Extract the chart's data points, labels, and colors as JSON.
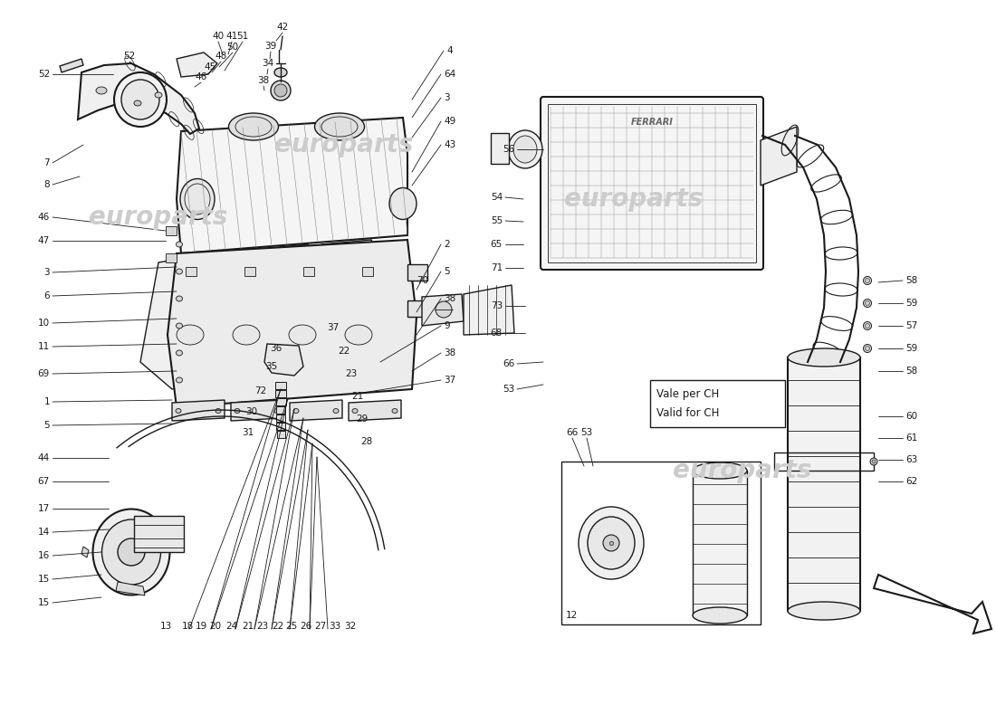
{
  "background_color": "#ffffff",
  "line_color": "#1a1a1a",
  "text_color": "#1a1a1a",
  "watermark_color": "#cccccc",
  "watermark_text": "europarts",
  "fig_width": 11.0,
  "fig_height": 8.0,
  "note_text_1": "Vale per CH",
  "note_text_2": "Valid for CH",
  "left_labels": [
    [
      52,
      718,
      "52"
    ],
    [
      7,
      620,
      "7"
    ],
    [
      8,
      596,
      "8"
    ],
    [
      46,
      560,
      "46"
    ],
    [
      47,
      534,
      "47"
    ],
    [
      3,
      499,
      "3"
    ],
    [
      6,
      473,
      "6"
    ],
    [
      10,
      443,
      "10"
    ],
    [
      11,
      417,
      "11"
    ],
    [
      69,
      387,
      "69"
    ],
    [
      1,
      356,
      "1"
    ],
    [
      5,
      330,
      "5"
    ],
    [
      44,
      294,
      "44"
    ],
    [
      67,
      268,
      "67"
    ],
    [
      17,
      238,
      "17"
    ],
    [
      14,
      212,
      "14"
    ],
    [
      16,
      186,
      "16"
    ],
    [
      15,
      160,
      "15"
    ],
    [
      15,
      134,
      "15"
    ]
  ],
  "right_labels_col1": [
    [
      56,
      632,
      "56"
    ],
    [
      54,
      580,
      "54"
    ],
    [
      55,
      554,
      "55"
    ],
    [
      65,
      528,
      "65"
    ],
    [
      71,
      502,
      "71"
    ],
    [
      73,
      461,
      "73"
    ],
    [
      68,
      431,
      "68"
    ],
    [
      66,
      395,
      "66"
    ]
  ],
  "right_labels_col2": [
    [
      58,
      490,
      "58"
    ],
    [
      59,
      466,
      "59"
    ],
    [
      57,
      442,
      "57"
    ],
    [
      59,
      418,
      "59"
    ],
    [
      58,
      390,
      "58"
    ],
    [
      60,
      336,
      "60"
    ],
    [
      61,
      312,
      "61"
    ],
    [
      63,
      288,
      "63"
    ],
    [
      62,
      264,
      "62"
    ]
  ],
  "top_labels_left": [
    [
      153,
      724,
      "52"
    ],
    [
      234,
      742,
      "40"
    ],
    [
      248,
      742,
      "41"
    ],
    [
      305,
      760,
      "42"
    ],
    [
      295,
      740,
      "39"
    ],
    [
      292,
      718,
      "34"
    ],
    [
      289,
      698,
      "38"
    ],
    [
      274,
      730,
      "51"
    ],
    [
      264,
      718,
      "50"
    ],
    [
      251,
      716,
      "48"
    ],
    [
      242,
      708,
      "45"
    ],
    [
      236,
      700,
      "46"
    ]
  ],
  "top_labels_right": [
    [
      483,
      732,
      "4"
    ],
    [
      480,
      706,
      "64"
    ],
    [
      480,
      682,
      "3"
    ],
    [
      481,
      658,
      "49"
    ],
    [
      481,
      634,
      "43"
    ]
  ],
  "bottom_labels_row": [
    [
      185,
      99,
      "13"
    ],
    [
      208,
      99,
      "18"
    ],
    [
      224,
      99,
      "19"
    ],
    [
      241,
      99,
      "20"
    ],
    [
      260,
      99,
      "24"
    ],
    [
      278,
      99,
      "21"
    ],
    [
      294,
      99,
      "23"
    ],
    [
      311,
      99,
      "22"
    ],
    [
      327,
      99,
      "25"
    ],
    [
      343,
      99,
      "26"
    ],
    [
      360,
      99,
      "27"
    ],
    [
      376,
      99,
      "33"
    ],
    [
      393,
      99,
      "32"
    ]
  ],
  "bottom_labels_mid": [
    [
      300,
      396,
      "36"
    ],
    [
      299,
      376,
      "35"
    ],
    [
      291,
      352,
      "72"
    ],
    [
      282,
      328,
      "30"
    ],
    [
      278,
      307,
      "31"
    ],
    [
      378,
      430,
      "37"
    ],
    [
      387,
      396,
      "22"
    ],
    [
      394,
      369,
      "23"
    ],
    [
      399,
      344,
      "21"
    ],
    [
      404,
      318,
      "29"
    ],
    [
      409,
      293,
      "28"
    ],
    [
      408,
      462,
      "9"
    ],
    [
      434,
      490,
      "2"
    ],
    [
      434,
      455,
      "5"
    ],
    [
      434,
      425,
      "38"
    ],
    [
      457,
      488,
      "70"
    ]
  ]
}
